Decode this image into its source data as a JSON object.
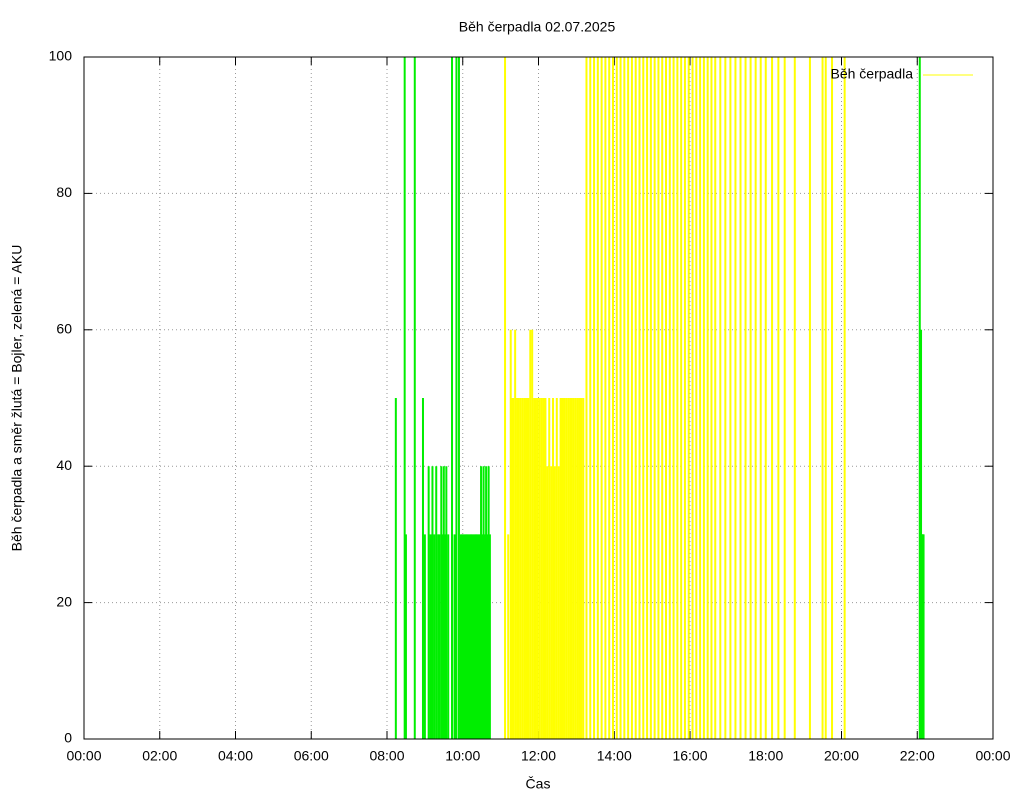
{
  "chart_data": {
    "type": "impulse",
    "title": "Běh čerpadla 02.07.2025",
    "xlabel": "Čas",
    "ylabel": "Běh čerpadla a směr žlutá = Bojler, zelená = AKU",
    "xlim": [
      0,
      1440
    ],
    "xticks": [
      {
        "value": 0,
        "label": "00:00"
      },
      {
        "value": 120,
        "label": "02:00"
      },
      {
        "value": 240,
        "label": "04:00"
      },
      {
        "value": 360,
        "label": "06:00"
      },
      {
        "value": 480,
        "label": "08:00"
      },
      {
        "value": 600,
        "label": "10:00"
      },
      {
        "value": 720,
        "label": "12:00"
      },
      {
        "value": 840,
        "label": "14:00"
      },
      {
        "value": 960,
        "label": "16:00"
      },
      {
        "value": 1080,
        "label": "18:00"
      },
      {
        "value": 1200,
        "label": "20:00"
      },
      {
        "value": 1320,
        "label": "22:00"
      },
      {
        "value": 1440,
        "label": "00:00"
      }
    ],
    "ylim": [
      0,
      100
    ],
    "yticks": [
      0,
      20,
      40,
      60,
      80,
      100
    ],
    "grid": true,
    "legend": "top right",
    "series": [
      {
        "name": "Běh čerpadla",
        "color": "#ffff00",
        "x": [
          667,
          672,
          676,
          678,
          680,
          683,
          686,
          689,
          692,
          695,
          698,
          701,
          704,
          707,
          710,
          713,
          716,
          719,
          722,
          725,
          728,
          731,
          734,
          737,
          740,
          743,
          746,
          749,
          752,
          755,
          758,
          761,
          764,
          767,
          770,
          773,
          776,
          779,
          782,
          785,
          788,
          791,
          796,
          802,
          808,
          814,
          820,
          826,
          832,
          838,
          844,
          850,
          856,
          862,
          868,
          874,
          880,
          886,
          892,
          898,
          904,
          910,
          916,
          922,
          928,
          934,
          940,
          946,
          952,
          958,
          964,
          970,
          976,
          982,
          988,
          994,
          1000,
          1008,
          1016,
          1024,
          1032,
          1040,
          1048,
          1056,
          1064,
          1072,
          1080,
          1090,
          1100,
          1110,
          1126,
          1150,
          1170,
          1175,
          1185,
          1205
        ],
        "values": [
          100,
          30,
          60,
          50,
          50,
          60,
          50,
          50,
          50,
          50,
          50,
          50,
          50,
          60,
          60,
          50,
          50,
          50,
          50,
          50,
          50,
          50,
          40,
          50,
          40,
          50,
          40,
          50,
          40,
          50,
          50,
          50,
          50,
          50,
          50,
          50,
          50,
          50,
          50,
          50,
          50,
          50,
          100,
          100,
          100,
          100,
          100,
          100,
          100,
          100,
          100,
          100,
          100,
          100,
          100,
          100,
          100,
          100,
          100,
          100,
          100,
          100,
          100,
          100,
          100,
          100,
          100,
          100,
          100,
          100,
          100,
          100,
          100,
          100,
          100,
          100,
          100,
          100,
          100,
          100,
          100,
          100,
          100,
          100,
          100,
          100,
          100,
          100,
          100,
          100,
          100,
          100,
          100,
          100,
          100,
          100
        ]
      },
      {
        "color": "#00ee00",
        "x": [
          494,
          508,
          510,
          524,
          537,
          540,
          546,
          549,
          552,
          555,
          558,
          561,
          563,
          566,
          568,
          570,
          572,
          574,
          577,
          583,
          587,
          590,
          594,
          597,
          599,
          601,
          603,
          605,
          607,
          609,
          611,
          613,
          615,
          617,
          619,
          621,
          623,
          625,
          627,
          629,
          631,
          633,
          635,
          637,
          639,
          641,
          643,
          1324,
          1326,
          1327,
          1328,
          1329,
          1330
        ],
        "values": [
          50,
          100,
          30,
          100,
          50,
          30,
          40,
          30,
          40,
          30,
          40,
          30,
          30,
          40,
          30,
          40,
          30,
          40,
          30,
          100,
          30,
          100,
          100,
          30,
          30,
          30,
          30,
          30,
          30,
          30,
          30,
          30,
          30,
          30,
          30,
          30,
          30,
          30,
          30,
          40,
          30,
          40,
          30,
          40,
          30,
          40,
          30,
          100,
          60,
          30,
          30,
          30,
          30
        ]
      }
    ]
  }
}
